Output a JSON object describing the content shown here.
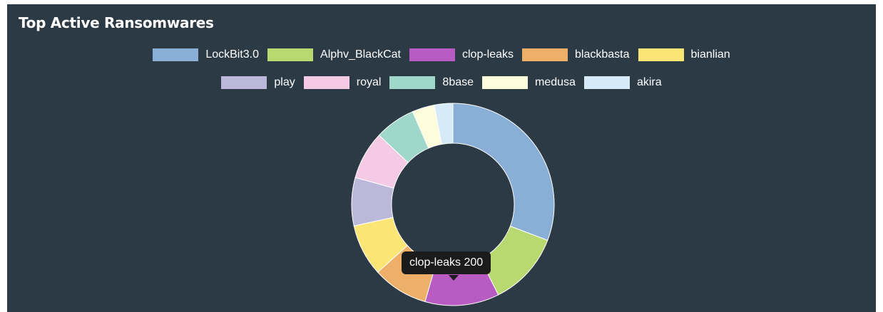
{
  "panel": {
    "title": "Top Active Ransomwares"
  },
  "tooltip": {
    "label": "clop-leaks",
    "value": "200",
    "text": "clop-leaks 200"
  },
  "chart_data": {
    "type": "pie",
    "variant": "donut",
    "title": "Top Active Ransomwares",
    "legend_position": "top",
    "categories": [
      "LockBit3.0",
      "Alphv_BlackCat",
      "clop-leaks",
      "blackbasta",
      "bianlian",
      "play",
      "royal",
      "8base",
      "medusa",
      "akira"
    ],
    "values": [
      520,
      200,
      200,
      150,
      140,
      130,
      130,
      110,
      60,
      50
    ],
    "colors": [
      "#8aafd6",
      "#b8d96f",
      "#b85bc2",
      "#eeb068",
      "#fae575",
      "#bcb8da",
      "#f4cae4",
      "#9fd8ca",
      "#fdfddc",
      "#d6ebf7"
    ]
  }
}
